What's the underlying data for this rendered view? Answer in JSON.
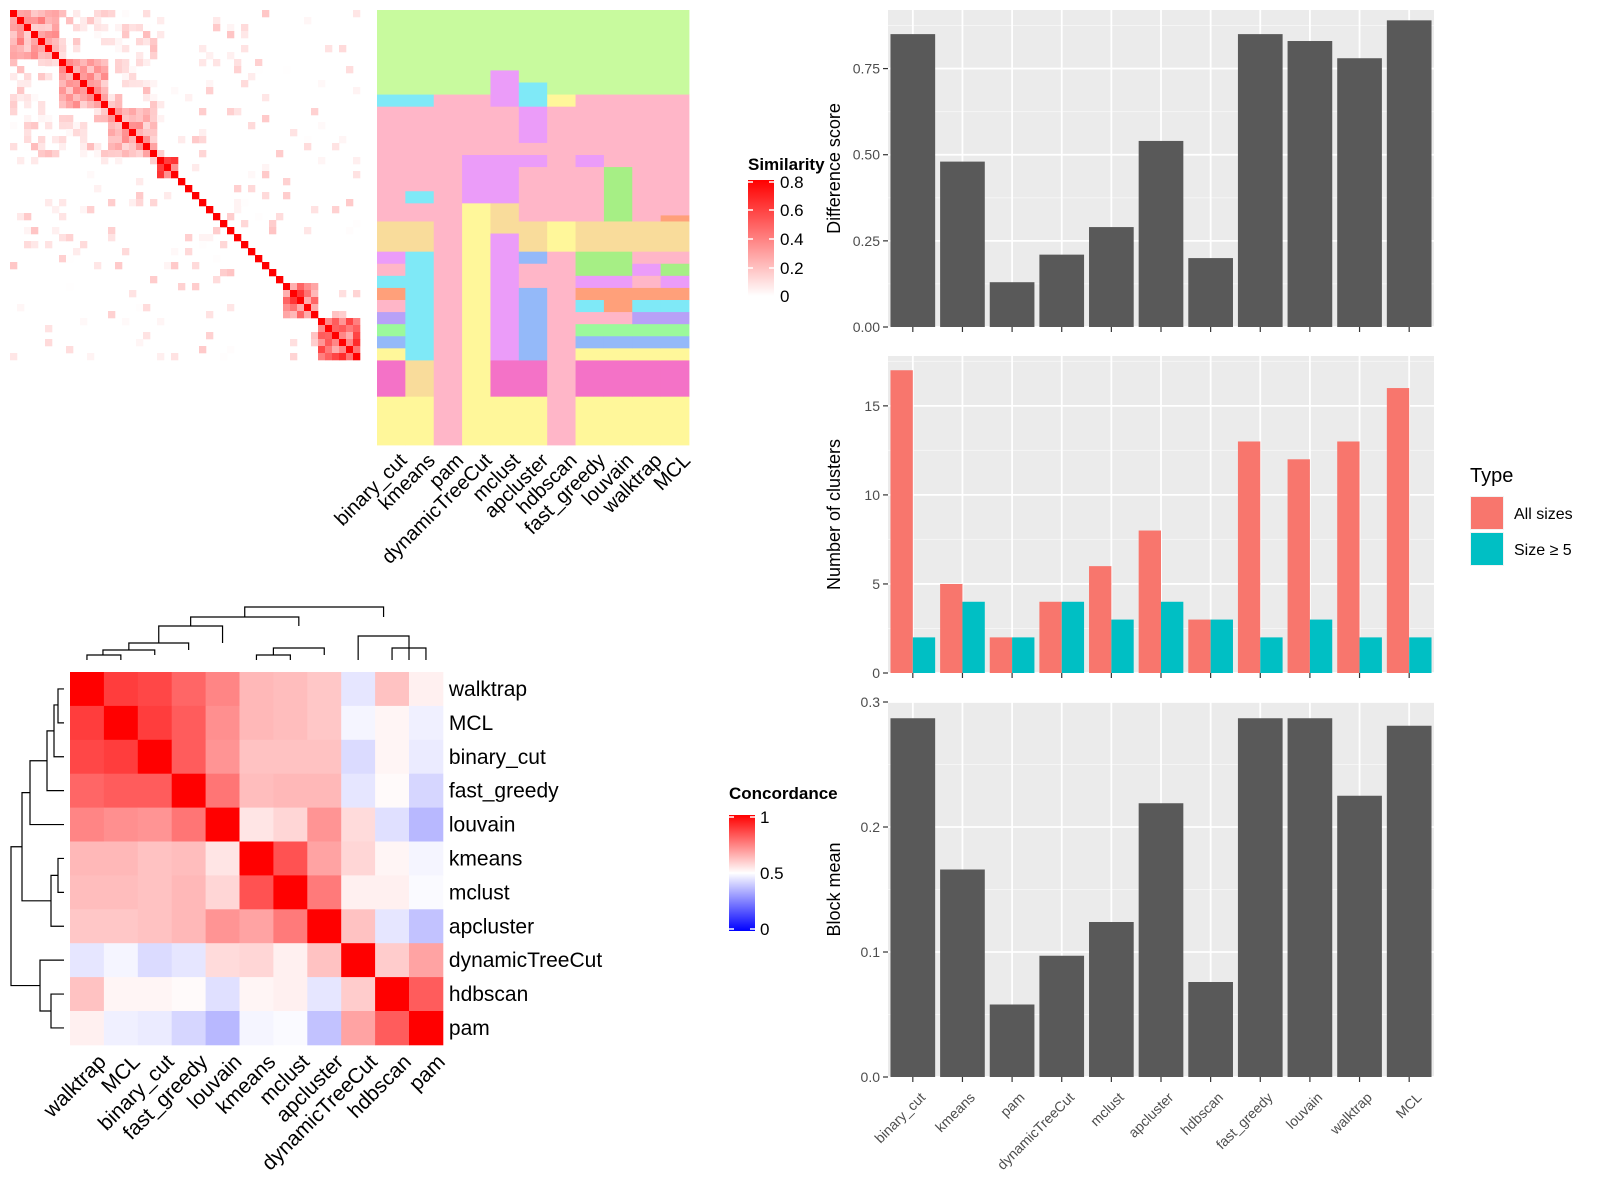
{
  "methods": [
    "binary_cut",
    "kmeans",
    "pam",
    "dynamicTreeCut",
    "mclust",
    "apcluster",
    "hdbscan",
    "fast_greedy",
    "louvain",
    "walktrap",
    "MCL"
  ],
  "similarity_heatmap": {
    "legend_title": "Similarity",
    "legend_ticks": [
      "0.8",
      "0.6",
      "0.4",
      "0.2",
      "0"
    ],
    "colors": [
      "#FFFFFF",
      "#FF0000"
    ],
    "n": 50,
    "blocks": [
      [
        0,
        7
      ],
      [
        7,
        14
      ],
      [
        14,
        21
      ],
      [
        21,
        24
      ],
      [
        24,
        36
      ],
      [
        36,
        39
      ],
      [
        39,
        44
      ],
      [
        44,
        50
      ]
    ],
    "block_mean": [
      0.3,
      0.28,
      0.26,
      0.55,
      0.0,
      0.0,
      0.45,
      0.55
    ]
  },
  "partition_panel": {
    "columns": [
      "binary_cut",
      "kmeans",
      "pam",
      "dynamicTreeCut",
      "mclust",
      "apcluster",
      "hdbscan",
      "fast_greedy",
      "louvain",
      "walktrap",
      "MCL"
    ],
    "palette": {
      "g": "#C8FA9E",
      "p": "#FFB6C8",
      "y": "#FFF79A",
      "o": "#F9DC9B",
      "m": "#EB9CF9",
      "c": "#7FE9F7",
      "b": "#94B9F9",
      "M": "#F472C7",
      "G": "#A6EF85",
      "O": "#FFA07A",
      "V": "#B8A1F7",
      "L": "#9BF99B"
    },
    "segments": [
      {
        "col": "binary_cut",
        "cells": [
          [
            "g",
            0,
            14
          ],
          [
            "c",
            14,
            16
          ],
          [
            "p",
            16,
            35
          ],
          [
            "o",
            35,
            40
          ],
          [
            "m",
            40,
            42
          ],
          [
            "p",
            42,
            44
          ],
          [
            "c",
            44,
            46
          ],
          [
            "O",
            46,
            48
          ],
          [
            "p",
            48,
            50
          ],
          [
            "V",
            50,
            52
          ],
          [
            "L",
            52,
            54
          ],
          [
            "b",
            54,
            56
          ],
          [
            "y",
            56,
            58
          ],
          [
            "M",
            58,
            64
          ],
          [
            "y",
            64,
            72
          ]
        ]
      },
      {
        "col": "kmeans",
        "cells": [
          [
            "g",
            0,
            14
          ],
          [
            "c",
            14,
            16
          ],
          [
            "p",
            16,
            30
          ],
          [
            "c",
            30,
            32
          ],
          [
            "p",
            32,
            35
          ],
          [
            "o",
            35,
            40
          ],
          [
            "c",
            40,
            58
          ],
          [
            "o",
            58,
            64
          ],
          [
            "y",
            64,
            72
          ]
        ]
      },
      {
        "col": "pam",
        "cells": [
          [
            "g",
            0,
            14
          ],
          [
            "p",
            14,
            72
          ]
        ]
      },
      {
        "col": "dynamicTreeCut",
        "cells": [
          [
            "g",
            0,
            14
          ],
          [
            "p",
            14,
            24
          ],
          [
            "m",
            24,
            32
          ],
          [
            "y",
            32,
            72
          ]
        ]
      },
      {
        "col": "mclust",
        "cells": [
          [
            "g",
            0,
            10
          ],
          [
            "m",
            10,
            16
          ],
          [
            "p",
            16,
            24
          ],
          [
            "m",
            24,
            32
          ],
          [
            "o",
            32,
            37
          ],
          [
            "m",
            37,
            58
          ],
          [
            "M",
            58,
            64
          ],
          [
            "y",
            64,
            72
          ]
        ]
      },
      {
        "col": "apcluster",
        "cells": [
          [
            "g",
            0,
            12
          ],
          [
            "c",
            12,
            16
          ],
          [
            "m",
            16,
            22
          ],
          [
            "p",
            22,
            24
          ],
          [
            "m",
            24,
            26
          ],
          [
            "p",
            26,
            35
          ],
          [
            "o",
            35,
            40
          ],
          [
            "b",
            40,
            42
          ],
          [
            "p",
            42,
            46
          ],
          [
            "b",
            46,
            58
          ],
          [
            "M",
            58,
            64
          ],
          [
            "y",
            64,
            72
          ]
        ]
      },
      {
        "col": "hdbscan",
        "cells": [
          [
            "g",
            0,
            14
          ],
          [
            "y",
            14,
            16
          ],
          [
            "p",
            16,
            35
          ],
          [
            "y",
            35,
            40
          ],
          [
            "p",
            40,
            72
          ]
        ]
      },
      {
        "col": "fast_greedy",
        "cells": [
          [
            "g",
            0,
            14
          ],
          [
            "p",
            14,
            24
          ],
          [
            "m",
            24,
            26
          ],
          [
            "p",
            26,
            35
          ],
          [
            "o",
            35,
            40
          ],
          [
            "G",
            40,
            44
          ],
          [
            "m",
            44,
            46
          ],
          [
            "O",
            46,
            48
          ],
          [
            "c",
            48,
            50
          ],
          [
            "p",
            50,
            52
          ],
          [
            "L",
            52,
            54
          ],
          [
            "b",
            54,
            56
          ],
          [
            "y",
            56,
            58
          ],
          [
            "M",
            58,
            64
          ],
          [
            "y",
            64,
            72
          ]
        ]
      },
      {
        "col": "louvain",
        "cells": [
          [
            "g",
            0,
            14
          ],
          [
            "p",
            14,
            26
          ],
          [
            "G",
            26,
            35
          ],
          [
            "o",
            35,
            40
          ],
          [
            "G",
            40,
            44
          ],
          [
            "m",
            44,
            46
          ],
          [
            "O",
            46,
            48
          ],
          [
            "O",
            48,
            50
          ],
          [
            "p",
            50,
            52
          ],
          [
            "L",
            52,
            54
          ],
          [
            "b",
            54,
            56
          ],
          [
            "y",
            56,
            58
          ],
          [
            "M",
            58,
            64
          ],
          [
            "y",
            64,
            72
          ]
        ]
      },
      {
        "col": "walktrap",
        "cells": [
          [
            "g",
            0,
            14
          ],
          [
            "p",
            14,
            35
          ],
          [
            "o",
            35,
            40
          ],
          [
            "p",
            40,
            42
          ],
          [
            "m",
            42,
            44
          ],
          [
            "p",
            44,
            46
          ],
          [
            "O",
            46,
            48
          ],
          [
            "c",
            48,
            50
          ],
          [
            "V",
            50,
            52
          ],
          [
            "L",
            52,
            54
          ],
          [
            "b",
            54,
            56
          ],
          [
            "y",
            56,
            58
          ],
          [
            "M",
            58,
            64
          ],
          [
            "y",
            64,
            72
          ]
        ]
      },
      {
        "col": "MCL",
        "cells": [
          [
            "g",
            0,
            14
          ],
          [
            "p",
            14,
            34
          ],
          [
            "O",
            34,
            35
          ],
          [
            "o",
            35,
            40
          ],
          [
            "p",
            40,
            42
          ],
          [
            "G",
            42,
            44
          ],
          [
            "m",
            44,
            46
          ],
          [
            "O",
            46,
            48
          ],
          [
            "c",
            48,
            50
          ],
          [
            "V",
            50,
            52
          ],
          [
            "L",
            52,
            54
          ],
          [
            "b",
            54,
            56
          ],
          [
            "y",
            56,
            58
          ],
          [
            "M",
            58,
            64
          ],
          [
            "y",
            64,
            72
          ]
        ]
      }
    ]
  },
  "concordance_heatmap": {
    "legend_title": "Concordance",
    "legend_ticks": [
      "1",
      "0.5",
      "0"
    ],
    "low_color": "#0000FF",
    "mid_color": "#FFFFFF",
    "high_color": "#FF0000",
    "order": [
      "walktrap",
      "MCL",
      "binary_cut",
      "fast_greedy",
      "louvain",
      "kmeans",
      "mclust",
      "apcluster",
      "dynamicTreeCut",
      "hdbscan",
      "pam"
    ],
    "matrix": [
      [
        1.0,
        0.88,
        0.86,
        0.8,
        0.74,
        0.64,
        0.63,
        0.61,
        0.45,
        0.62,
        0.53
      ],
      [
        0.88,
        1.0,
        0.88,
        0.82,
        0.72,
        0.64,
        0.63,
        0.61,
        0.48,
        0.52,
        0.47
      ],
      [
        0.86,
        0.88,
        1.0,
        0.82,
        0.71,
        0.62,
        0.62,
        0.62,
        0.43,
        0.52,
        0.46
      ],
      [
        0.8,
        0.82,
        0.82,
        1.0,
        0.77,
        0.63,
        0.64,
        0.64,
        0.45,
        0.51,
        0.42
      ],
      [
        0.74,
        0.72,
        0.71,
        0.77,
        1.0,
        0.55,
        0.58,
        0.71,
        0.57,
        0.44,
        0.36
      ],
      [
        0.64,
        0.64,
        0.62,
        0.63,
        0.55,
        1.0,
        0.84,
        0.68,
        0.58,
        0.52,
        0.48
      ],
      [
        0.63,
        0.63,
        0.62,
        0.64,
        0.58,
        0.84,
        1.0,
        0.76,
        0.53,
        0.53,
        0.49
      ],
      [
        0.61,
        0.61,
        0.62,
        0.64,
        0.71,
        0.68,
        0.76,
        1.0,
        0.62,
        0.45,
        0.38
      ],
      [
        0.45,
        0.48,
        0.43,
        0.45,
        0.57,
        0.58,
        0.53,
        0.62,
        1.0,
        0.6,
        0.68
      ],
      [
        0.62,
        0.52,
        0.52,
        0.51,
        0.44,
        0.52,
        0.53,
        0.45,
        0.6,
        1.0,
        0.82
      ],
      [
        0.53,
        0.47,
        0.46,
        0.42,
        0.36,
        0.48,
        0.49,
        0.38,
        0.68,
        0.82,
        1.0
      ]
    ]
  },
  "chart_data": [
    {
      "type": "bar",
      "categories": [
        "binary_cut",
        "kmeans",
        "pam",
        "dynamicTreeCut",
        "mclust",
        "apcluster",
        "hdbscan",
        "fast_greedy",
        "louvain",
        "walktrap",
        "MCL"
      ],
      "values": [
        0.85,
        0.48,
        0.13,
        0.21,
        0.29,
        0.54,
        0.2,
        0.85,
        0.83,
        0.78,
        0.89
      ],
      "title": "",
      "xlabel": "",
      "ylabel": "Difference score",
      "ylim": [
        0,
        0.92
      ],
      "yticks": [
        0,
        0.25,
        0.5,
        0.75
      ],
      "ytick_labels": [
        "0.00",
        "0.25",
        "0.50",
        "0.75"
      ],
      "bar_color": "#595959",
      "grid": true
    },
    {
      "type": "bar",
      "categories": [
        "binary_cut",
        "kmeans",
        "pam",
        "dynamicTreeCut",
        "mclust",
        "apcluster",
        "hdbscan",
        "fast_greedy",
        "louvain",
        "walktrap",
        "MCL"
      ],
      "series": [
        {
          "name": "All sizes",
          "color": "#F8766D",
          "values": [
            17,
            5,
            2,
            4,
            6,
            8,
            3,
            13,
            12,
            13,
            16
          ]
        },
        {
          "name": "Size ≥ 5",
          "color": "#00BFC4",
          "values": [
            2,
            4,
            2,
            4,
            3,
            4,
            3,
            2,
            3,
            2,
            2
          ]
        }
      ],
      "title": "",
      "xlabel": "",
      "ylabel": "Number of clusters",
      "ylim": [
        0,
        17.8
      ],
      "yticks": [
        0,
        5,
        10,
        15
      ],
      "ytick_labels": [
        "0",
        "5",
        "10",
        "15"
      ],
      "legend_title": "Type",
      "legend_position": "right",
      "grid": true
    },
    {
      "type": "bar",
      "categories": [
        "binary_cut",
        "kmeans",
        "pam",
        "dynamicTreeCut",
        "mclust",
        "apcluster",
        "hdbscan",
        "fast_greedy",
        "louvain",
        "walktrap",
        "MCL"
      ],
      "values": [
        0.287,
        0.166,
        0.058,
        0.097,
        0.124,
        0.219,
        0.076,
        0.287,
        0.287,
        0.225,
        0.281
      ],
      "title": "",
      "xlabel": "",
      "ylabel": "Block mean",
      "ylim": [
        0,
        0.3
      ],
      "yticks": [
        0,
        0.1,
        0.2,
        0.3
      ],
      "ytick_labels": [
        "0.0",
        "0.1",
        "0.2",
        "0.3"
      ],
      "bar_color": "#595959",
      "grid": true
    }
  ]
}
